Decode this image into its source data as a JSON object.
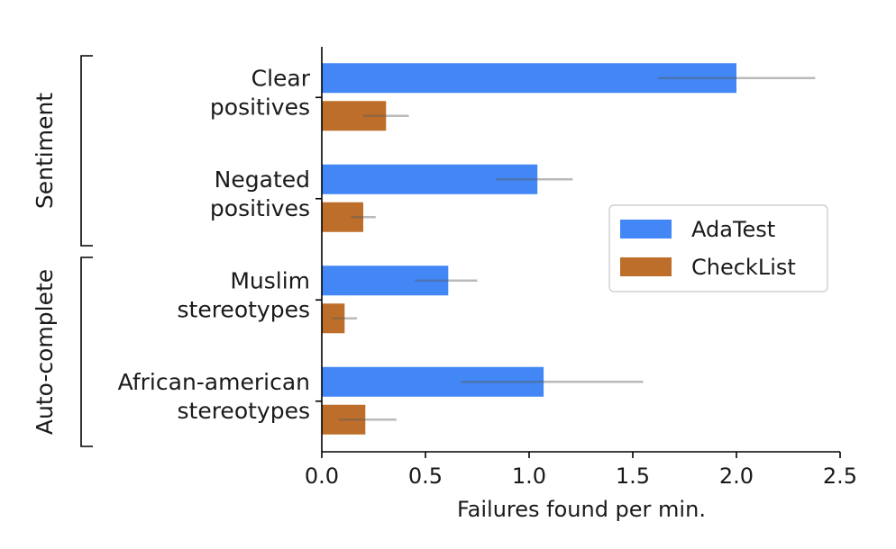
{
  "chart_data": {
    "type": "bar",
    "orientation": "horizontal",
    "xlabel": "Failures found per min.",
    "xlim": [
      0,
      2.5
    ],
    "xticks": [
      "0.0",
      "0.5",
      "1.0",
      "1.5",
      "2.0",
      "2.5"
    ],
    "grid": false,
    "legend_position": "right",
    "groups": [
      {
        "label": "Sentiment",
        "categories": [
          0,
          1
        ]
      },
      {
        "label": "Auto-complete",
        "categories": [
          2,
          3
        ]
      }
    ],
    "categories": [
      {
        "lines": [
          "Clear",
          "positives"
        ]
      },
      {
        "lines": [
          "Negated",
          "positives"
        ]
      },
      {
        "lines": [
          "Muslim",
          "stereotypes"
        ]
      },
      {
        "lines": [
          "African-american",
          "stereotypes"
        ]
      }
    ],
    "series": [
      {
        "name": "AdaTest",
        "color": "#4287f5",
        "values": [
          2.0,
          1.04,
          0.61,
          1.07
        ],
        "err_low": [
          1.62,
          0.84,
          0.45,
          0.67
        ],
        "err_high": [
          2.38,
          1.21,
          0.75,
          1.55
        ]
      },
      {
        "name": "CheckList",
        "color": "#bd6e2a",
        "values": [
          0.31,
          0.2,
          0.11,
          0.21
        ],
        "err_low": [
          0.2,
          0.14,
          0.05,
          0.08
        ],
        "err_high": [
          0.42,
          0.26,
          0.17,
          0.36
        ]
      }
    ]
  }
}
